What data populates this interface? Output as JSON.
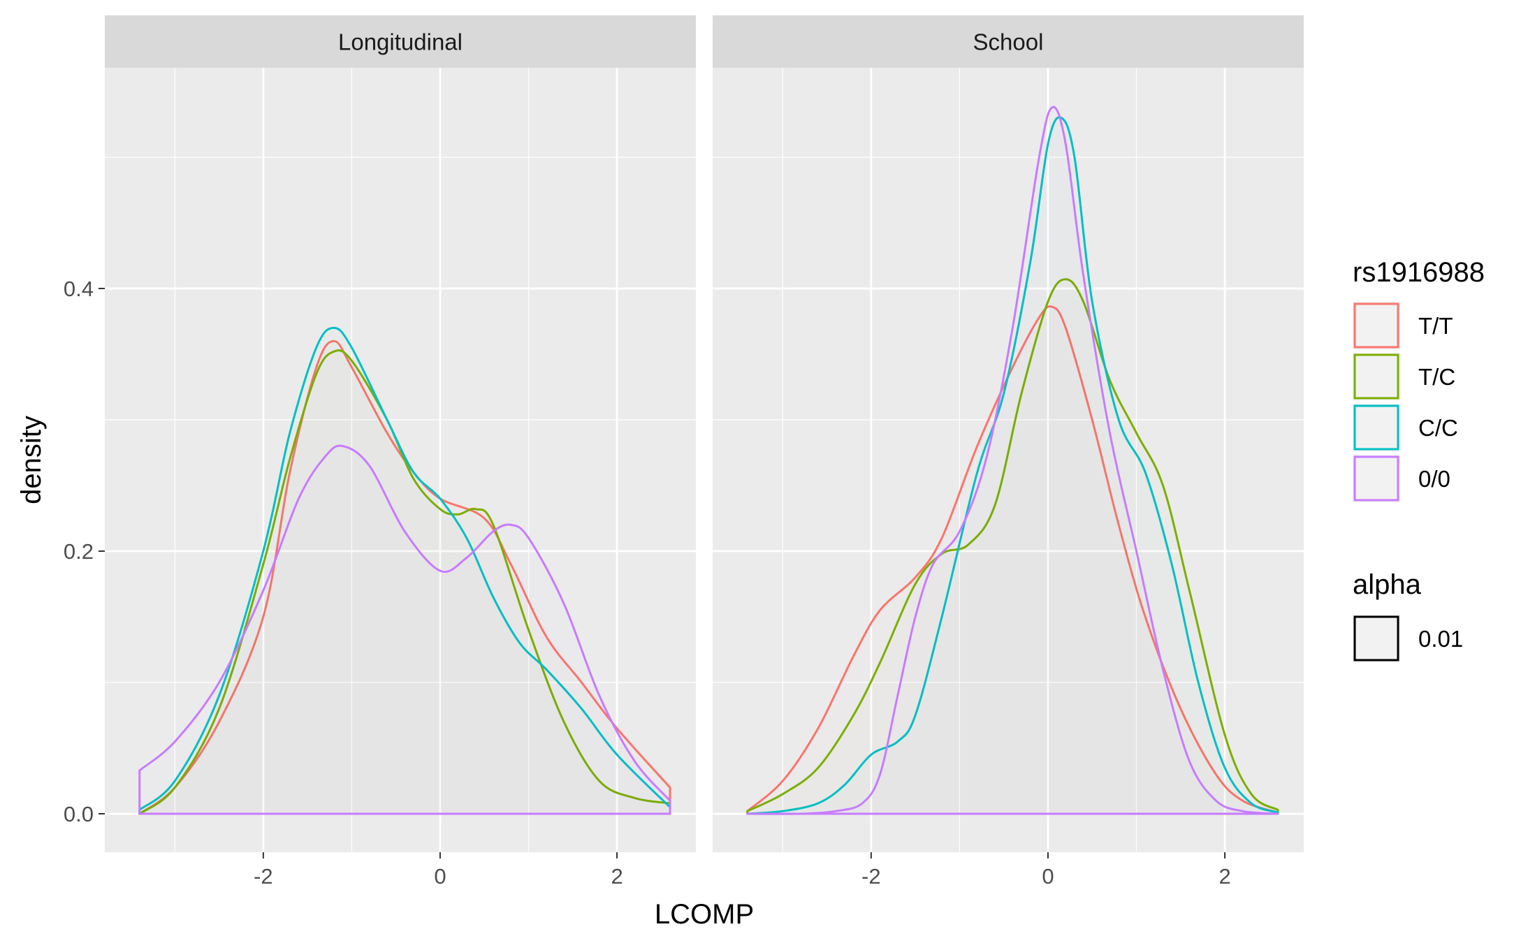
{
  "chart_data": {
    "type": "line",
    "subtype": "density",
    "xlabel": "LCOMP",
    "ylabel": "density",
    "xlim": [
      -3.5,
      2.6
    ],
    "ylim": [
      0,
      0.55
    ],
    "x_ticks": [
      -2,
      0,
      2
    ],
    "x_tick_labels": [
      "-2",
      "0",
      "2"
    ],
    "y_ticks": [
      0.0,
      0.2,
      0.4
    ],
    "y_tick_labels": [
      "0.0",
      "0.2",
      "0.4"
    ],
    "grid": true,
    "legend": {
      "position": "right",
      "colour_title": "rs1916988",
      "colour_entries": [
        {
          "label": "T/T",
          "color": "#F8766D"
        },
        {
          "label": "T/C",
          "color": "#7CAE00"
        },
        {
          "label": "C/C",
          "color": "#00BFC4"
        },
        {
          "label": "0/0",
          "color": "#C77CFF"
        }
      ],
      "alpha_title": "alpha",
      "alpha_entries": [
        {
          "label": "0.01",
          "color": "#000000"
        }
      ]
    },
    "panels": [
      {
        "strip": "Longitudinal",
        "series": [
          {
            "name": "T/T",
            "color": "#F8766D",
            "x": [
              -3.4,
              -3.0,
              -2.5,
              -2.0,
              -1.7,
              -1.4,
              -1.2,
              -1.0,
              -0.6,
              -0.3,
              0.0,
              0.5,
              0.8,
              1.2,
              1.6,
              2.0,
              2.6
            ],
            "y": [
              0.0,
              0.02,
              0.07,
              0.15,
              0.26,
              0.34,
              0.36,
              0.34,
              0.29,
              0.26,
              0.24,
              0.225,
              0.19,
              0.135,
              0.1,
              0.065,
              0.02
            ]
          },
          {
            "name": "T/C",
            "color": "#7CAE00",
            "x": [
              -3.4,
              -3.0,
              -2.5,
              -2.0,
              -1.7,
              -1.4,
              -1.2,
              -1.0,
              -0.6,
              -0.3,
              0.0,
              0.2,
              0.4,
              0.6,
              1.0,
              1.4,
              1.8,
              2.2,
              2.6
            ],
            "y": [
              0.0,
              0.02,
              0.08,
              0.19,
              0.27,
              0.335,
              0.352,
              0.345,
              0.3,
              0.255,
              0.232,
              0.228,
              0.232,
              0.22,
              0.14,
              0.07,
              0.025,
              0.012,
              0.008
            ]
          },
          {
            "name": "C/C",
            "color": "#00BFC4",
            "x": [
              -3.4,
              -3.0,
              -2.5,
              -2.0,
              -1.7,
              -1.4,
              -1.2,
              -1.0,
              -0.6,
              -0.3,
              0.0,
              0.3,
              0.6,
              0.9,
              1.2,
              1.6,
              2.0,
              2.6
            ],
            "y": [
              0.003,
              0.025,
              0.09,
              0.2,
              0.29,
              0.355,
              0.37,
              0.355,
              0.3,
              0.26,
              0.24,
              0.21,
              0.165,
              0.13,
              0.11,
              0.08,
              0.045,
              0.005
            ]
          },
          {
            "name": "0/0",
            "color": "#C77CFF",
            "x": [
              -3.4,
              -3.0,
              -2.5,
              -2.0,
              -1.6,
              -1.3,
              -1.1,
              -0.8,
              -0.4,
              0.0,
              0.3,
              0.6,
              0.8,
              1.0,
              1.4,
              1.8,
              2.2,
              2.6
            ],
            "y": [
              0.033,
              0.055,
              0.1,
              0.17,
              0.24,
              0.272,
              0.28,
              0.265,
              0.215,
              0.185,
              0.195,
              0.215,
              0.22,
              0.21,
              0.16,
              0.09,
              0.04,
              0.01
            ]
          }
        ]
      },
      {
        "strip": "School",
        "series": [
          {
            "name": "T/T",
            "color": "#F8766D",
            "x": [
              -3.4,
              -3.0,
              -2.6,
              -2.2,
              -1.9,
              -1.5,
              -1.2,
              -0.8,
              -0.4,
              -0.1,
              0.05,
              0.2,
              0.5,
              0.8,
              1.1,
              1.5,
              1.9,
              2.2,
              2.6
            ],
            "y": [
              0.002,
              0.025,
              0.065,
              0.12,
              0.155,
              0.18,
              0.21,
              0.28,
              0.34,
              0.378,
              0.386,
              0.37,
              0.3,
              0.22,
              0.15,
              0.08,
              0.03,
              0.01,
              0.001
            ]
          },
          {
            "name": "T/C",
            "color": "#7CAE00",
            "x": [
              -3.4,
              -3.0,
              -2.6,
              -2.2,
              -1.9,
              -1.5,
              -1.2,
              -0.9,
              -0.6,
              -0.3,
              0.0,
              0.2,
              0.4,
              0.7,
              1.0,
              1.3,
              1.6,
              2.0,
              2.3,
              2.6
            ],
            "y": [
              0.002,
              0.015,
              0.035,
              0.075,
              0.115,
              0.175,
              0.198,
              0.205,
              0.235,
              0.32,
              0.39,
              0.407,
              0.39,
              0.33,
              0.29,
              0.25,
              0.17,
              0.06,
              0.015,
              0.003
            ]
          },
          {
            "name": "C/C",
            "color": "#00BFC4",
            "x": [
              -3.4,
              -3.0,
              -2.6,
              -2.3,
              -2.0,
              -1.7,
              -1.5,
              -1.2,
              -0.8,
              -0.5,
              -0.2,
              0.0,
              0.15,
              0.3,
              0.5,
              0.8,
              1.1,
              1.4,
              1.7,
              2.0,
              2.3,
              2.6
            ],
            "y": [
              0.0,
              0.002,
              0.008,
              0.022,
              0.045,
              0.055,
              0.075,
              0.15,
              0.26,
              0.32,
              0.42,
              0.51,
              0.53,
              0.5,
              0.39,
              0.3,
              0.26,
              0.19,
              0.1,
              0.035,
              0.008,
              0.001
            ]
          },
          {
            "name": "0/0",
            "color": "#C77CFF",
            "x": [
              -3.4,
              -2.8,
              -2.4,
              -2.1,
              -1.9,
              -1.7,
              -1.5,
              -1.3,
              -1.0,
              -0.7,
              -0.4,
              -0.1,
              0.05,
              0.2,
              0.4,
              0.7,
              1.0,
              1.3,
              1.6,
              1.9,
              2.2,
              2.6
            ],
            "y": [
              0.0,
              0.0,
              0.002,
              0.008,
              0.03,
              0.09,
              0.15,
              0.19,
              0.215,
              0.27,
              0.37,
              0.5,
              0.538,
              0.51,
              0.41,
              0.29,
              0.2,
              0.11,
              0.04,
              0.01,
              0.002,
              0.0
            ]
          }
        ]
      }
    ]
  }
}
